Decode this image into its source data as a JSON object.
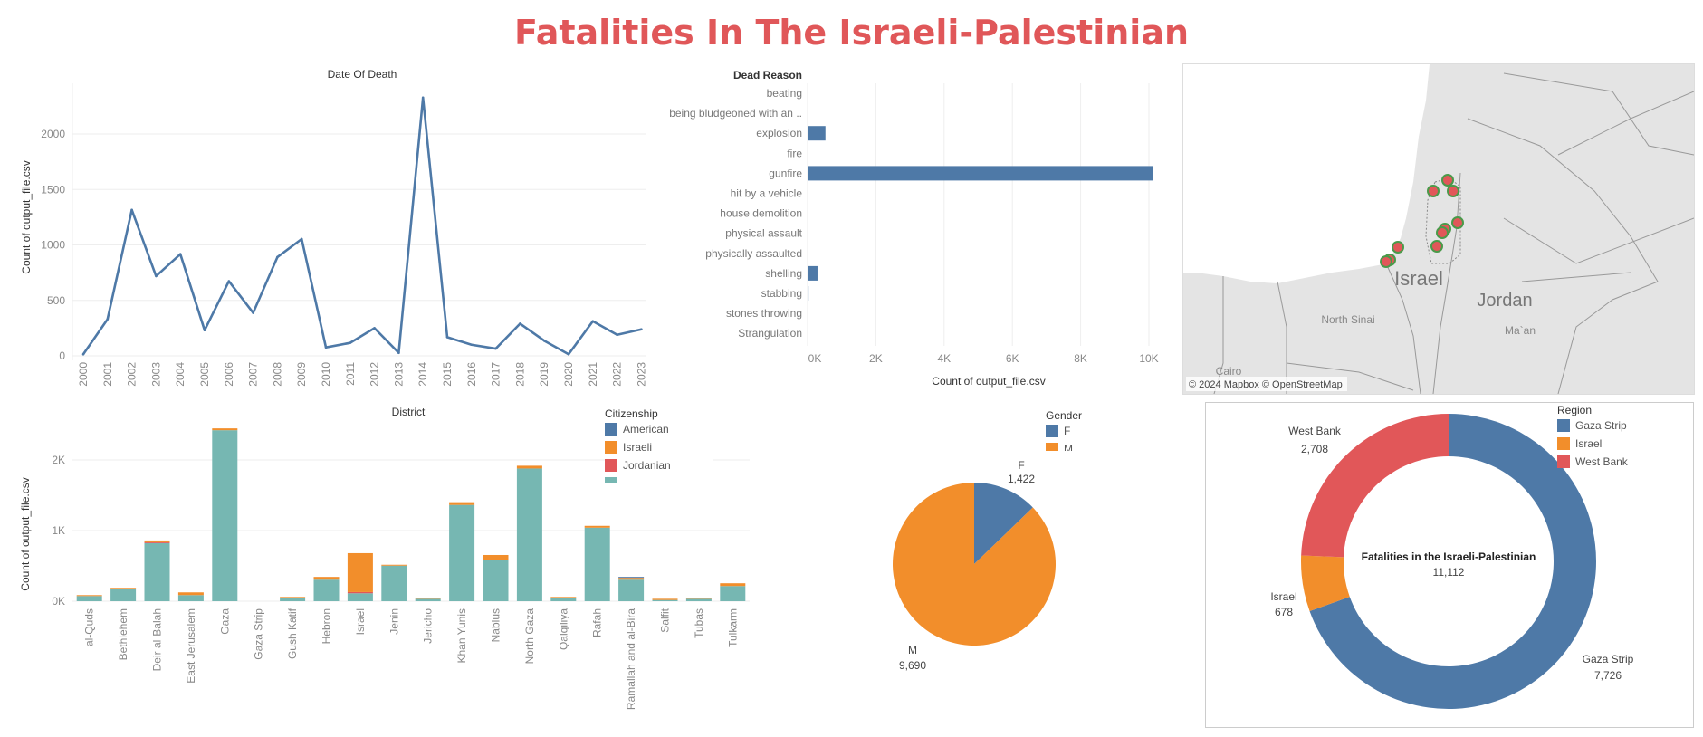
{
  "dashboard": {
    "title": "Fatalities In The Israeli-Palestinian"
  },
  "colors": {
    "title": "#e05759",
    "blue": "#4e79a7",
    "orange": "#f28e2b",
    "red": "#e15759",
    "teal": "#76b7b2"
  },
  "chart_data": [
    {
      "type": "line",
      "title": "Date Of Death",
      "xlabel": "",
      "ylabel": "Count of output_file.csv",
      "ylim": [
        0,
        2400
      ],
      "yticks": [
        "0",
        "500",
        "1000",
        "1500",
        "2000"
      ],
      "grid": true,
      "x": [
        "2000",
        "2001",
        "2002",
        "2003",
        "2004",
        "2005",
        "2006",
        "2007",
        "2008",
        "2009",
        "2010",
        "2011",
        "2012",
        "2013",
        "2014",
        "2015",
        "2016",
        "2017",
        "2018",
        "2019",
        "2020",
        "2021",
        "2022",
        "2023"
      ],
      "values": [
        14,
        331,
        1316,
        719,
        917,
        231,
        673,
        388,
        890,
        1053,
        76,
        117,
        250,
        27,
        2328,
        168,
        100,
        65,
        290,
        136,
        14,
        312,
        190,
        239
      ]
    },
    {
      "type": "bar",
      "orientation": "horizontal",
      "title": "Dead Reason",
      "xlabel": "Count of output_file.csv",
      "xlim": [
        0,
        10500
      ],
      "xticks": [
        "0K",
        "2K",
        "4K",
        "6K",
        "8K",
        "10K"
      ],
      "categories": [
        "beating",
        "being bludgeoned with an ..",
        "explosion",
        "fire",
        "gunfire",
        "hit by a vehicle",
        "house demolition",
        "physical assault",
        "physically assaulted",
        "shelling",
        "stabbing",
        "stones throwing",
        "Strangulation"
      ],
      "values": [
        1,
        1,
        524,
        2,
        10126,
        3,
        1,
        1,
        1,
        291,
        30,
        2,
        1
      ]
    },
    {
      "type": "bar",
      "stacked": true,
      "title": "District",
      "ylabel": "Count of output_file.csv",
      "ylim": [
        0,
        2500
      ],
      "yticks": [
        "0K",
        "1K",
        "2K"
      ],
      "legend_title": "Citizenship",
      "legend_position": "top-right",
      "categories": [
        "al-Quds",
        "Bethlehem",
        "Deir al-Balah",
        "East Jerusalem",
        "Gaza",
        "Gaza Strip",
        "Gush Katif",
        "Hebron",
        "Israel",
        "Jenin",
        "Jericho",
        "Khan Yunis",
        "Nablus",
        "North Gaza",
        "Qalqiliya",
        "Rafah",
        "Ramallah and al-Bira",
        "Salfit",
        "Tubas",
        "Tulkarm"
      ],
      "series": [
        {
          "name": "",
          "color": "#76b7b2",
          "values": [
            73,
            167,
            822,
            86,
            2421,
            0,
            43,
            305,
            112,
            503,
            34,
            1363,
            589,
            1879,
            43,
            1041,
            305,
            17,
            34,
            215
          ]
        },
        {
          "name": "Jordanian",
          "color": "#e15759",
          "values": [
            0,
            0,
            12,
            0,
            0,
            0,
            0,
            0,
            17,
            0,
            0,
            0,
            0,
            0,
            0,
            0,
            0,
            0,
            0,
            0
          ]
        },
        {
          "name": "Israeli",
          "color": "#f28e2b",
          "values": [
            13,
            22,
            26,
            39,
            26,
            0,
            17,
            39,
            551,
            13,
            13,
            39,
            65,
            39,
            17,
            26,
            26,
            17,
            13,
            39
          ]
        },
        {
          "name": "American",
          "color": "#4e79a7",
          "values": [
            0,
            0,
            0,
            0,
            0,
            0,
            0,
            0,
            0,
            0,
            0,
            0,
            0,
            0,
            0,
            0,
            13,
            0,
            0,
            0
          ]
        }
      ],
      "legend": [
        "American",
        "Israeli",
        "Jordanian"
      ]
    },
    {
      "type": "pie",
      "legend_title": "Gender",
      "categories": [
        "F",
        "M"
      ],
      "values": [
        1422,
        9690
      ],
      "labels": [
        "1,422",
        "9,690"
      ],
      "colors": [
        "#4e79a7",
        "#f28e2b"
      ]
    },
    {
      "type": "pie",
      "donut": true,
      "legend_title": "Region",
      "center_title": "Fatalities in the Israeli-Palestinian",
      "center_value": "11,112",
      "categories": [
        "Gaza Strip",
        "Israel",
        "West Bank"
      ],
      "values": [
        7726,
        678,
        2708
      ],
      "labels": [
        "7,726",
        "678",
        "2,708"
      ],
      "colors": [
        "#4e79a7",
        "#f28e2b",
        "#e15759"
      ]
    }
  ],
  "map": {
    "labels": {
      "israel": "Israel",
      "jordan": "Jordan",
      "north_sinai": "North Sinai",
      "maan": "Ma`an",
      "cairo": "Cairo"
    },
    "attribution": "© 2024 Mapbox © OpenStreetMap",
    "marker_color": "#e15759",
    "marker_count": 10
  }
}
